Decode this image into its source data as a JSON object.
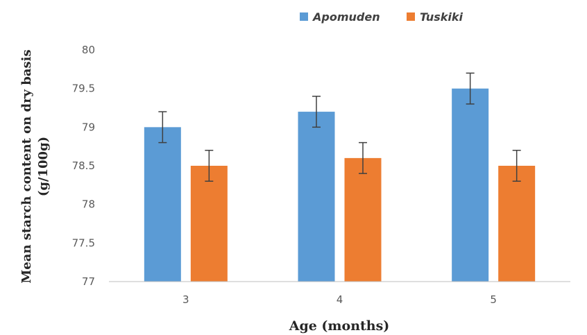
{
  "chart_data": {
    "type": "bar",
    "title": "",
    "xlabel": "Age (months)",
    "ylabel": "Mean starch content on dry basis (g/100g)",
    "ylabel_lines": [
      "Mean starch content on dry basis",
      "(g/100g)"
    ],
    "categories": [
      "3",
      "4",
      "5"
    ],
    "series": [
      {
        "name": "Apomuden",
        "color": "#5B9BD5",
        "values": [
          79.0,
          79.2,
          79.5
        ],
        "errors": [
          0.2,
          0.2,
          0.2
        ]
      },
      {
        "name": "Tuskiki",
        "color": "#ED7D31",
        "values": [
          78.5,
          78.6,
          78.5
        ],
        "errors": [
          0.2,
          0.2,
          0.2
        ]
      }
    ],
    "ylim": [
      77,
      80
    ],
    "yticks": [
      "77",
      "77.5",
      "78",
      "78.5",
      "79",
      "79.5",
      "80"
    ],
    "grid": false,
    "legend_position": "top-center"
  }
}
